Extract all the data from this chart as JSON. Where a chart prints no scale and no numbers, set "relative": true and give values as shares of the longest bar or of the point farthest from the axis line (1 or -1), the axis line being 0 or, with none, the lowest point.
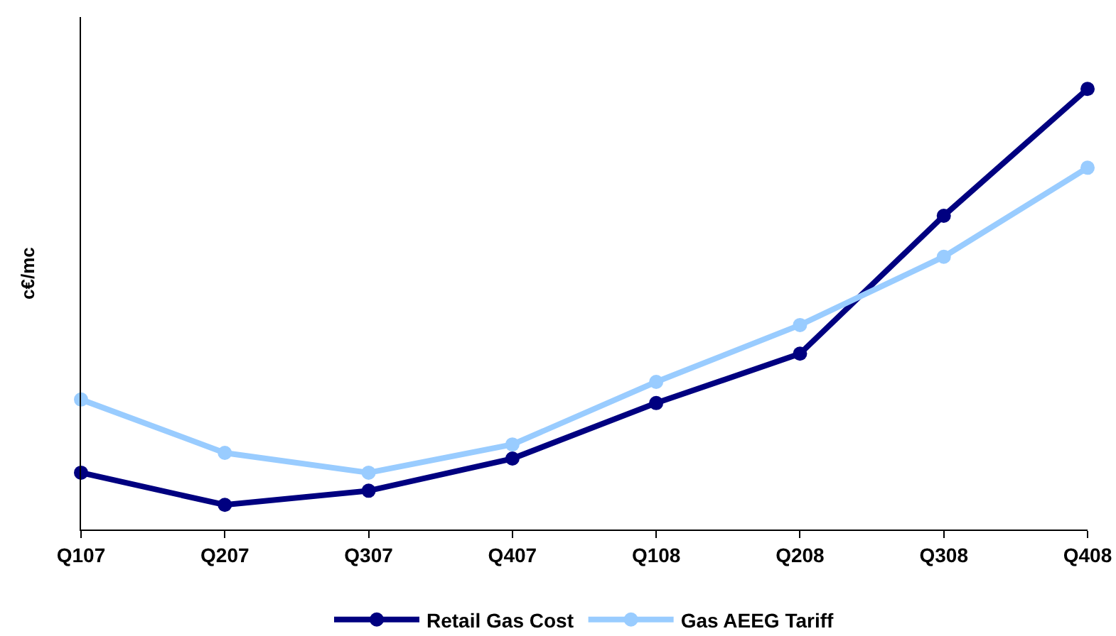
{
  "chart_data": {
    "type": "line",
    "relative": true,
    "ylabel": "c€/mc",
    "categories": [
      "Q107",
      "Q207",
      "Q307",
      "Q407",
      "Q108",
      "Q208",
      "Q308",
      "Q408"
    ],
    "series": [
      {
        "name": "Retail Gas Cost",
        "color": "#000080",
        "values": [
          0.129,
          0.056,
          0.088,
          0.161,
          0.287,
          0.399,
          0.712,
          1
        ]
      },
      {
        "name": "Gas AEEG Tariff",
        "color": "#99ccff",
        "values": [
          0.295,
          0.174,
          0.129,
          0.193,
          0.335,
          0.464,
          0.619,
          0.821
        ]
      }
    ],
    "legend": "bottom",
    "marker": "circle",
    "line_style": "solid",
    "tick_labels": "x"
  }
}
